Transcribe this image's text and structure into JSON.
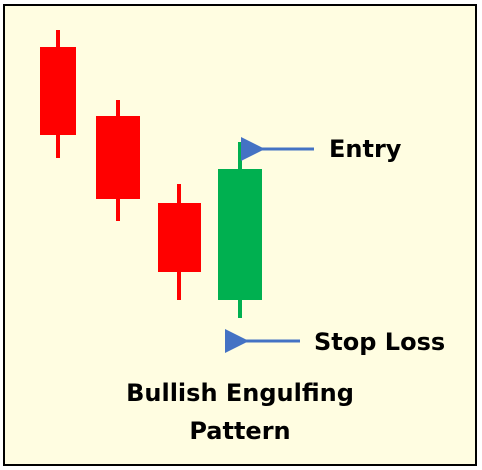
{
  "colors": {
    "background": "#fffde1",
    "border": "#000000",
    "bearish": "#ff0000",
    "bullish": "#00b050",
    "arrow": "#4472c4",
    "text": "#000000"
  },
  "candles": [
    {
      "kind": "bearish"
    },
    {
      "kind": "bearish"
    },
    {
      "kind": "bearish"
    },
    {
      "kind": "bullish"
    }
  ],
  "annotations": {
    "entry_label": "Entry",
    "stop_loss_label": "Stop Loss"
  },
  "caption": {
    "line1": "Bullish Engulfing",
    "line2": "Pattern"
  }
}
